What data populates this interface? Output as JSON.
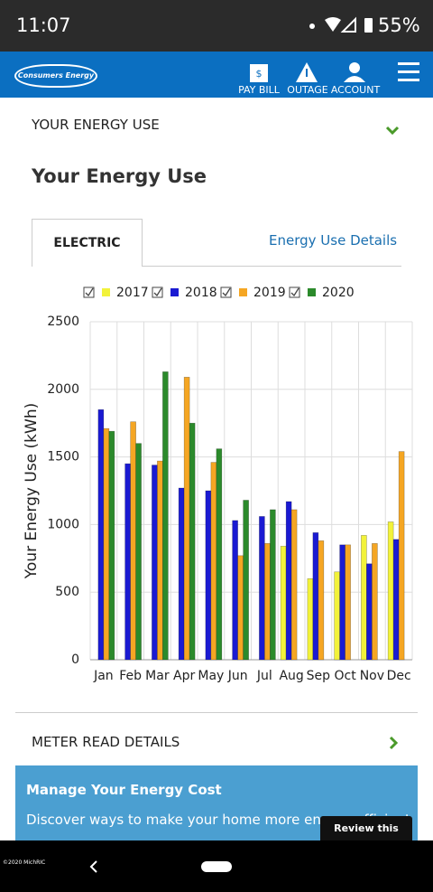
{
  "status_bar": {
    "time": "11:07",
    "battery": "55%"
  },
  "header": {
    "logo": "Consumers Energy",
    "nav": [
      "PAY BILL",
      "OUTAGE",
      "ACCOUNT"
    ]
  },
  "section_title": "YOUR ENERGY USE",
  "page_title": "Your Energy Use",
  "tabs": {
    "active": "ELECTRIC",
    "link": "Energy Use Details"
  },
  "chart_data": {
    "type": "bar",
    "y_label": "Your Energy Use (kWh)",
    "categories": [
      "Jan",
      "Feb",
      "Mar",
      "Apr",
      "May",
      "Jun",
      "Jul",
      "Aug",
      "Sep",
      "Oct",
      "Nov",
      "Dec"
    ],
    "series": [
      {
        "name": "2017",
        "color": "#f2f23a",
        "values": [
          null,
          null,
          null,
          null,
          null,
          null,
          null,
          840,
          600,
          650,
          920,
          1020
        ]
      },
      {
        "name": "2018",
        "color": "#1a1ad2",
        "values": [
          1850,
          1450,
          1440,
          1270,
          1250,
          1030,
          1060,
          1170,
          940,
          850,
          710,
          890
        ]
      },
      {
        "name": "2019",
        "color": "#f5a623",
        "values": [
          1710,
          1760,
          1470,
          2090,
          1460,
          770,
          860,
          1110,
          880,
          850,
          860,
          1540
        ]
      },
      {
        "name": "2020",
        "color": "#2b8a2b",
        "values": [
          1690,
          1600,
          2130,
          1750,
          1560,
          1180,
          1110,
          null,
          null,
          null,
          null,
          null
        ]
      }
    ],
    "ylim": [
      0,
      2500
    ],
    "yticks": [
      0,
      500,
      1000,
      1500,
      2000,
      2500
    ],
    "grid": true
  },
  "meter": "METER READ DETAILS",
  "promo": {
    "title": "Manage Your Energy Cost",
    "text": "Discover ways to make your home more energy efficient"
  },
  "review": "Review this page",
  "footer": "©2020 MichRIC"
}
